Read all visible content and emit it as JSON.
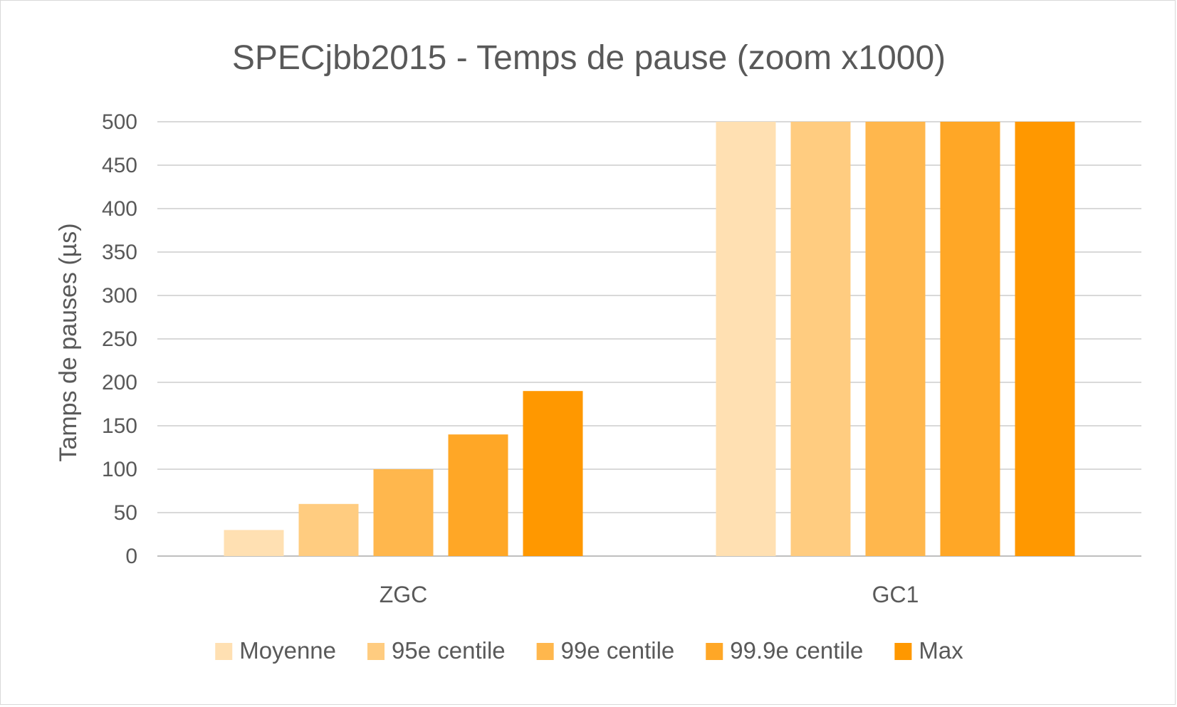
{
  "chart_data": {
    "type": "bar",
    "title": "SPECjbb2015 - Temps de pause (zoom x1000)",
    "xlabel": "",
    "ylabel": "Tamps de pauses (µs)",
    "ylim": [
      0,
      500
    ],
    "yticks": [
      0,
      50,
      100,
      150,
      200,
      250,
      300,
      350,
      400,
      450,
      500
    ],
    "grid": true,
    "legend_position": "bottom",
    "categories": [
      "ZGC",
      "GC1"
    ],
    "series": [
      {
        "name": "Moyenne",
        "color": "#FFE0B2",
        "values": [
          30,
          500
        ]
      },
      {
        "name": "95e centile",
        "color": "#FFCC80",
        "values": [
          60,
          500
        ]
      },
      {
        "name": "99e centile",
        "color": "#FFB74D",
        "values": [
          100,
          500
        ]
      },
      {
        "name": "99.9e centile",
        "color": "#FFA726",
        "values": [
          140,
          500
        ]
      },
      {
        "name": "Max",
        "color": "#FF9800",
        "values": [
          190,
          500
        ]
      }
    ]
  }
}
